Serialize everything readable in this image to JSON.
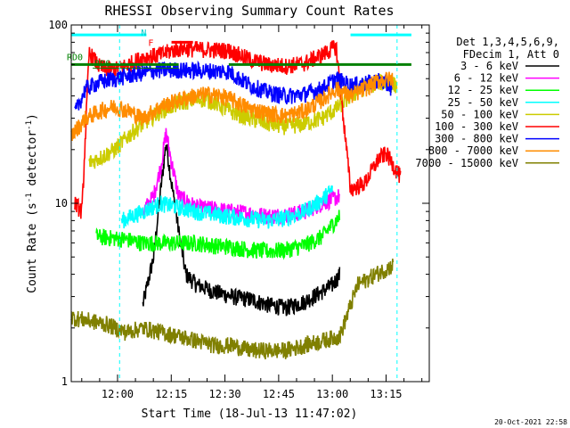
{
  "chart_data": {
    "type": "line",
    "title": "RHESSI Observing Summary Count Rates",
    "xlabel": "Start Time (18-Jul-13 11:47:02)",
    "ylabel": "Count Rate (s",
    "ylabel_sup": "-1",
    "ylabel_end": " detector",
    "ylabel_sup2": "-1",
    "ylabel_close": ")",
    "y_scale": "log",
    "ylim": [
      1,
      100
    ],
    "xlim_min": [
      0,
      100
    ],
    "y_ticks": [
      {
        "v": 1,
        "label": "1"
      },
      {
        "v": 10,
        "label": "10"
      },
      {
        "v": 100,
        "label": "100"
      }
    ],
    "x_ticks": [
      {
        "t": 12.93,
        "label": "12:00"
      },
      {
        "t": 27.93,
        "label": "12:15"
      },
      {
        "t": 42.93,
        "label": "12:30"
      },
      {
        "t": 57.93,
        "label": "12:45"
      },
      {
        "t": 72.93,
        "label": "13:00"
      },
      {
        "t": 87.93,
        "label": "13:15"
      }
    ],
    "legend_header": [
      "Det 1,3,4,5,6,9,",
      "FDecim 1, Att 0"
    ],
    "legend_position": "right",
    "series": [
      {
        "name": "3 - 6 keV",
        "color": "#000000",
        "points": [
          [
            20,
            2.7
          ],
          [
            23,
            5
          ],
          [
            25,
            12
          ],
          [
            26.5,
            22
          ],
          [
            28,
            13
          ],
          [
            30,
            7
          ],
          [
            32,
            4
          ],
          [
            35,
            3.5
          ],
          [
            40,
            3.2
          ],
          [
            45,
            3
          ],
          [
            50,
            2.9
          ],
          [
            55,
            2.7
          ],
          [
            60,
            2.6
          ],
          [
            65,
            2.8
          ],
          [
            70,
            3.2
          ],
          [
            73,
            3.5
          ],
          [
            75,
            4
          ]
        ]
      },
      {
        "name": "6 - 12 keV",
        "color": "#ff00ff",
        "points": [
          [
            20,
            9
          ],
          [
            23,
            11
          ],
          [
            25,
            16
          ],
          [
            26.5,
            25
          ],
          [
            28,
            17
          ],
          [
            30,
            11
          ],
          [
            35,
            9.5
          ],
          [
            40,
            9.3
          ],
          [
            45,
            9
          ],
          [
            50,
            8.8
          ],
          [
            55,
            8.5
          ],
          [
            60,
            8.6
          ],
          [
            65,
            9
          ],
          [
            70,
            10
          ],
          [
            75,
            11
          ]
        ]
      },
      {
        "name": "12 - 25 keV",
        "color": "#00ff00",
        "points": [
          [
            7,
            6.5
          ],
          [
            15,
            6.3
          ],
          [
            20,
            6
          ],
          [
            30,
            6
          ],
          [
            35,
            6
          ],
          [
            40,
            5.8
          ],
          [
            45,
            5.7
          ],
          [
            50,
            5.5
          ],
          [
            55,
            5.4
          ],
          [
            60,
            5.5
          ],
          [
            65,
            5.8
          ],
          [
            70,
            6.5
          ],
          [
            75,
            8.5
          ]
        ]
      },
      {
        "name": "25 - 50 keV",
        "color": "#00ffff",
        "points": [
          [
            14,
            8
          ],
          [
            20,
            9
          ],
          [
            25,
            10
          ],
          [
            30,
            9.5
          ],
          [
            35,
            9
          ],
          [
            40,
            8.7
          ],
          [
            45,
            8.4
          ],
          [
            50,
            8.2
          ],
          [
            55,
            8
          ],
          [
            60,
            8.3
          ],
          [
            65,
            9
          ],
          [
            70,
            10.5
          ],
          [
            73,
            12
          ]
        ]
      },
      {
        "name": "50 - 100 keV",
        "color": "#cccc00",
        "points": [
          [
            5,
            17
          ],
          [
            8,
            18
          ],
          [
            12,
            20
          ],
          [
            16,
            24
          ],
          [
            20,
            28
          ],
          [
            25,
            33
          ],
          [
            28,
            35
          ],
          [
            31,
            37
          ],
          [
            34,
            38
          ],
          [
            37,
            38.5
          ],
          [
            40,
            37
          ],
          [
            43,
            34
          ],
          [
            46,
            32
          ],
          [
            50,
            30
          ],
          [
            55,
            28
          ],
          [
            60,
            27
          ],
          [
            65,
            28
          ],
          [
            70,
            30
          ],
          [
            74,
            34
          ],
          [
            78,
            40
          ],
          [
            82,
            45
          ],
          [
            86,
            48
          ],
          [
            91,
            46
          ]
        ]
      },
      {
        "name": "100 - 300 keV",
        "color": "#ff0000",
        "points": [
          [
            1,
            10
          ],
          [
            3,
            9
          ],
          [
            5,
            70
          ],
          [
            8,
            58
          ],
          [
            12,
            56
          ],
          [
            16,
            60
          ],
          [
            20,
            66
          ],
          [
            25,
            68
          ],
          [
            28,
            72
          ],
          [
            31,
            74
          ],
          [
            44,
            72
          ],
          [
            47,
            68
          ],
          [
            50,
            64
          ],
          [
            55,
            60
          ],
          [
            60,
            59
          ],
          [
            65,
            61
          ],
          [
            70,
            68
          ],
          [
            74,
            76
          ],
          [
            78,
            12
          ],
          [
            82,
            13
          ],
          [
            86,
            18
          ],
          [
            88,
            19
          ],
          [
            92,
            14
          ]
        ]
      },
      {
        "name": "300 - 800 keV",
        "color": "#0000ff",
        "points": [
          [
            1,
            32
          ],
          [
            4,
            44
          ],
          [
            8,
            48
          ],
          [
            12,
            50
          ],
          [
            16,
            52
          ],
          [
            20,
            54
          ],
          [
            25,
            56
          ],
          [
            30,
            56
          ],
          [
            44,
            55
          ],
          [
            47,
            50
          ],
          [
            50,
            46
          ],
          [
            55,
            42
          ],
          [
            60,
            40
          ],
          [
            65,
            41
          ],
          [
            70,
            44
          ],
          [
            74,
            50
          ],
          [
            78,
            46
          ],
          [
            82,
            47
          ],
          [
            86,
            49
          ],
          [
            90,
            44
          ]
        ]
      },
      {
        "name": "800 - 7000 keV",
        "color": "#ff8c00",
        "points": [
          [
            0,
            24
          ],
          [
            4,
            30
          ],
          [
            8,
            33
          ],
          [
            12,
            35
          ],
          [
            16,
            33
          ],
          [
            20,
            30
          ],
          [
            25,
            35
          ],
          [
            30,
            38
          ],
          [
            34,
            40
          ],
          [
            38,
            41
          ],
          [
            42,
            40
          ],
          [
            45,
            38
          ],
          [
            50,
            34
          ],
          [
            55,
            32
          ],
          [
            60,
            31
          ],
          [
            65,
            33
          ],
          [
            70,
            38
          ],
          [
            74,
            44
          ],
          [
            78,
            40
          ],
          [
            82,
            44
          ],
          [
            86,
            49
          ],
          [
            90,
            50
          ]
        ]
      },
      {
        "name": "7000 - 15000 keV",
        "color": "#808000",
        "points": [
          [
            0,
            2.3
          ],
          [
            5,
            2.2
          ],
          [
            10,
            2.1
          ],
          [
            15,
            1.9
          ],
          [
            20,
            2.0
          ],
          [
            25,
            1.9
          ],
          [
            30,
            1.8
          ],
          [
            35,
            1.7
          ],
          [
            40,
            1.6
          ],
          [
            45,
            1.6
          ],
          [
            50,
            1.5
          ],
          [
            55,
            1.5
          ],
          [
            60,
            1.5
          ],
          [
            65,
            1.6
          ],
          [
            70,
            1.7
          ],
          [
            75,
            1.8
          ],
          [
            80,
            3.5
          ],
          [
            85,
            4
          ],
          [
            90,
            4.5
          ]
        ]
      }
    ],
    "attenuator_bar": {
      "label": "RD0",
      "y": 60
    },
    "decimation_bar": {
      "label": "RD6",
      "y": 60
    },
    "saa_bar": {
      "y": 88
    },
    "night_label": "N",
    "flare_label": "F",
    "flare_bar": {
      "y": 80
    },
    "dashed_lines_t": [
      13.5,
      91
    ],
    "datestamp": "20-Oct-2021 22:58"
  }
}
